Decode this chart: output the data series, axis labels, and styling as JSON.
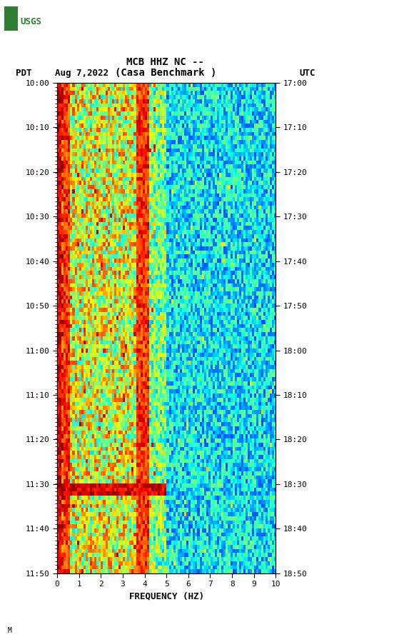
{
  "title_line1": "MCB HHZ NC --",
  "title_line2": "(Casa Benchmark )",
  "date_label": "Aug 7,2022",
  "pdt_label": "PDT",
  "utc_label": "UTC",
  "freq_label": "FREQUENCY (HZ)",
  "freq_min": 0,
  "freq_max": 10,
  "time_left_labels": [
    "10:00",
    "10:10",
    "10:20",
    "10:30",
    "10:40",
    "10:50",
    "11:00",
    "11:10",
    "11:20",
    "11:30",
    "11:40",
    "11:50"
  ],
  "time_right_labels": [
    "17:00",
    "17:10",
    "17:20",
    "17:30",
    "17:40",
    "17:50",
    "18:00",
    "18:10",
    "18:20",
    "18:30",
    "18:40",
    "18:50"
  ],
  "bg_color": "#ffffff",
  "spectrogram_cmap": "jet",
  "n_freq_bins": 100,
  "n_time_bins": 120,
  "seed": 42,
  "fig_width": 5.52,
  "fig_height": 8.92,
  "dpi": 100,
  "usgs_green": "#2e7d32"
}
